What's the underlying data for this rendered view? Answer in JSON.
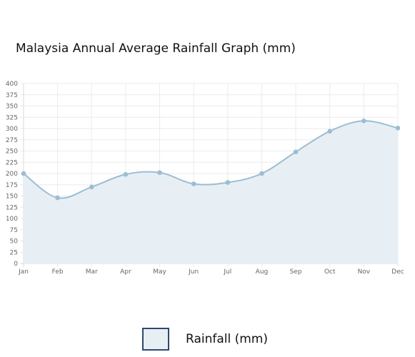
{
  "chart_data": {
    "type": "area",
    "title": "Malaysia Annual Average Rainfall Graph (mm)",
    "categories": [
      "Jan",
      "Feb",
      "Mar",
      "Apr",
      "May",
      "Jun",
      "Jul",
      "Aug",
      "Sep",
      "Oct",
      "Nov",
      "Dec"
    ],
    "series": [
      {
        "name": "Rainfall (mm)",
        "values": [
          200,
          146,
          170,
          198,
          202,
          177,
          180,
          200,
          248,
          294,
          317,
          301
        ]
      }
    ],
    "ylim": [
      0,
      400
    ],
    "yticks": [
      "0",
      "25",
      "50",
      "75",
      "100",
      "125",
      "150",
      "175",
      "200",
      "225",
      "250",
      "275",
      "300",
      "325",
      "350",
      "375",
      "400"
    ],
    "grid": true,
    "legend_position": "bottom",
    "colors": {
      "line": "#9cbdd2",
      "fill": "#e7eff5",
      "point": "#9cbdd2",
      "legend_border": "#2e4a6b",
      "grid": "#ebebeb",
      "axis": "#d8d8d8",
      "tick_text": "#666666"
    }
  }
}
